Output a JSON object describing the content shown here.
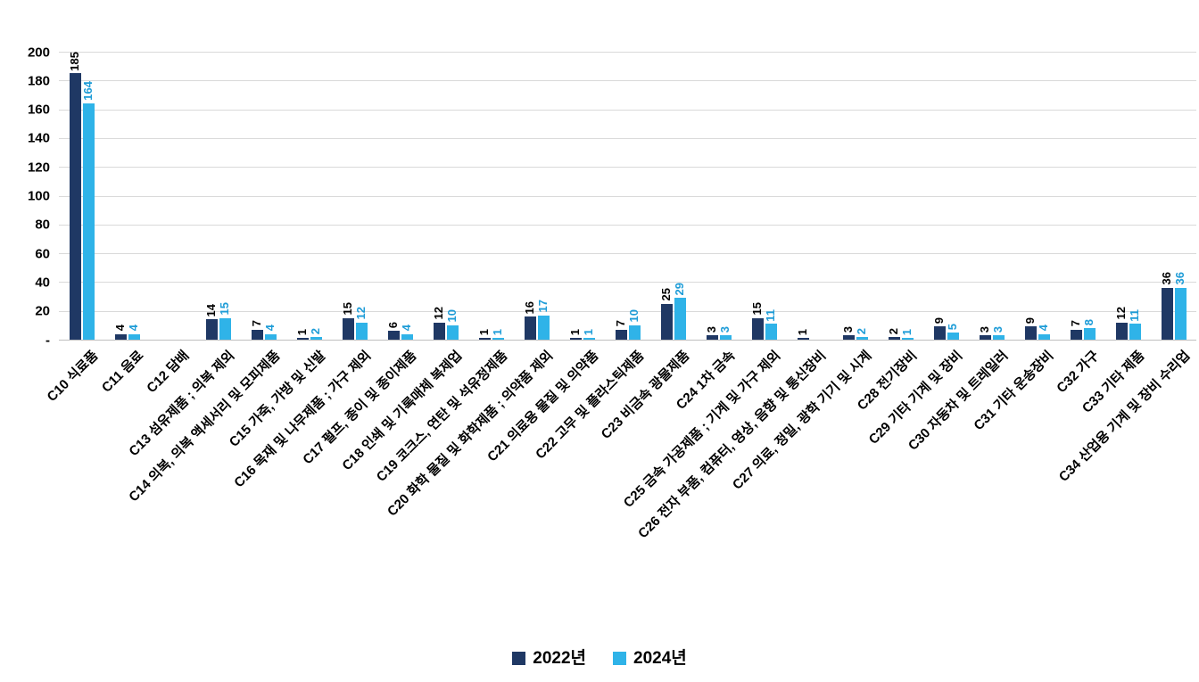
{
  "chart_data": {
    "type": "bar",
    "title": "",
    "xlabel": "",
    "ylabel": "",
    "ylim": [
      0,
      200
    ],
    "grid": true,
    "legend_position": "bottom",
    "y_ticks": [
      "200",
      "180",
      "160",
      "140",
      "120",
      "100",
      "80",
      "60",
      "40",
      "20",
      "-"
    ],
    "categories": [
      "C10 식료품",
      "C11 음료",
      "C12 담배",
      "C13 섬유제품 ; 의복 제외",
      "C14 의복, 의복 액세서리 및 모피제품",
      "C15 가죽, 가방 및 신발",
      "C16 목재 및 나무제품 ; 가구 제외",
      "C17 펄프, 종이 및 종이제품",
      "C18 인쇄 및 기록매체 복제업",
      "C19 코크스, 연탄 및 석유정제품",
      "C20 화학 물질 및 화학제품 ; 의약품 제외",
      "C21 의료용 물질 및 의약품",
      "C22 고무 및 플라스틱제품",
      "C23 비금속 광물제품",
      "C24 1차 금속",
      "C25 금속 가공제품 ; 기계 및 가구 제외",
      "C26 전자 부품, 컴퓨터, 영상, 음향 및 통신장비",
      "C27 의료, 정밀, 광학 기기 및 시계",
      "C28 전기장비",
      "C29 기타 기계 및 장비",
      "C30 자동차 및 트레일러",
      "C31 기타 운송장비",
      "C32 가구",
      "C33 기타 제품",
      "C34 산업용 기계 및 장비 수리업"
    ],
    "series": [
      {
        "name": "2022년",
        "color": "#1F3864",
        "label_color": "#000000",
        "values": [
          185,
          4,
          0,
          14,
          7,
          1,
          15,
          6,
          12,
          1,
          16,
          1,
          7,
          25,
          3,
          15,
          1,
          3,
          2,
          9,
          3,
          9,
          7,
          12,
          36
        ]
      },
      {
        "name": "2024년",
        "color": "#2FB3E8",
        "label_color": "#1E9CD7",
        "values": [
          164,
          4,
          0,
          15,
          4,
          2,
          12,
          4,
          10,
          1,
          17,
          1,
          10,
          29,
          3,
          11,
          0,
          2,
          1,
          5,
          3,
          4,
          8,
          11,
          36
        ]
      }
    ]
  }
}
